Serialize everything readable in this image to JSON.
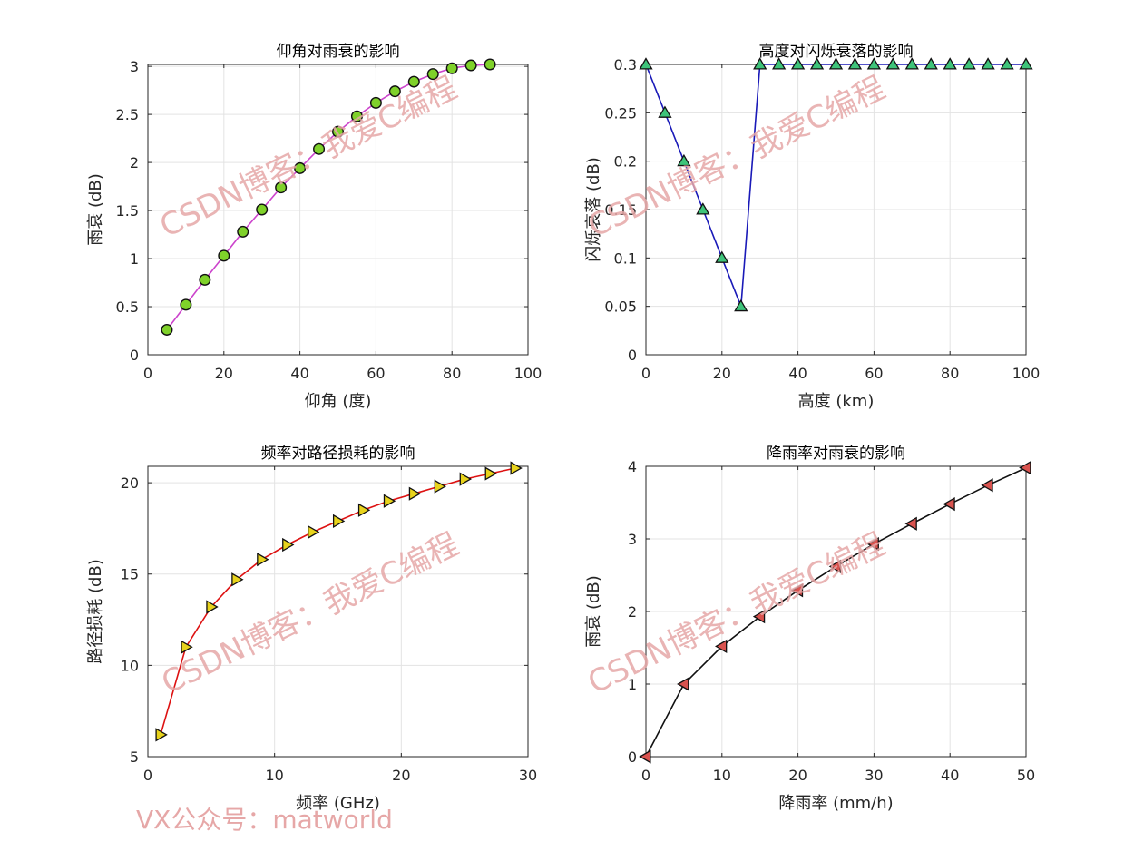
{
  "watermark": {
    "text": "CSDN博客：我爱C编程",
    "footer": "VX公众号：matworld"
  },
  "colors": {
    "grid": "#e3e3e3",
    "axis": "#262626"
  },
  "chart_data": [
    {
      "type": "line",
      "title": "仰角对雨衰的影响",
      "xlabel": "仰角 (度)",
      "ylabel": "雨衰 (dB)",
      "xlim": [
        0,
        100
      ],
      "ylim": [
        0,
        3.02
      ],
      "xticks": [
        0,
        20,
        40,
        60,
        80,
        100
      ],
      "yticks": [
        0,
        0.5,
        1,
        1.5,
        2,
        2.5,
        3
      ],
      "ytick_labels": [
        "0",
        "0.5",
        "1",
        "1.5",
        "2",
        "2.5",
        "3"
      ],
      "grid": true,
      "line_color": "#cc44cc",
      "marker": "circle",
      "marker_color": "#7fd12a",
      "x": [
        5,
        10,
        15,
        20,
        25,
        30,
        35,
        40,
        45,
        50,
        55,
        60,
        65,
        70,
        75,
        80,
        85,
        90
      ],
      "y": [
        0.26,
        0.52,
        0.78,
        1.03,
        1.28,
        1.51,
        1.74,
        1.94,
        2.14,
        2.32,
        2.48,
        2.62,
        2.74,
        2.84,
        2.92,
        2.98,
        3.01,
        3.02
      ]
    },
    {
      "type": "line",
      "title": "高度对闪烁衰落的影响",
      "xlabel": "高度 (km)",
      "ylabel": "闪烁衰落 (dB)",
      "xlim": [
        0,
        100
      ],
      "ylim": [
        0,
        0.3
      ],
      "xticks": [
        0,
        20,
        40,
        60,
        80,
        100
      ],
      "yticks": [
        0,
        0.05,
        0.1,
        0.15,
        0.2,
        0.25,
        0.3
      ],
      "ytick_labels": [
        "0",
        "0.05",
        "0.1",
        "0.15",
        "0.2",
        "0.25",
        "0.3"
      ],
      "grid": true,
      "line_color": "#1a1ab8",
      "marker": "triangle-up",
      "marker_color": "#3ec47a",
      "x": [
        0,
        5,
        10,
        15,
        20,
        25,
        30,
        35,
        40,
        45,
        50,
        55,
        60,
        65,
        70,
        75,
        80,
        85,
        90,
        95,
        100
      ],
      "y": [
        0.3,
        0.25,
        0.2,
        0.15,
        0.1,
        0.05,
        0.3,
        0.3,
        0.3,
        0.3,
        0.3,
        0.3,
        0.3,
        0.3,
        0.3,
        0.3,
        0.3,
        0.3,
        0.3,
        0.3,
        0.3
      ]
    },
    {
      "type": "line",
      "title": "频率对路径损耗的影响",
      "xlabel": "频率 (GHz)",
      "ylabel": "路径损耗 (dB)",
      "xlim": [
        0,
        30
      ],
      "ylim": [
        5,
        20.9
      ],
      "xticks": [
        0,
        10,
        20,
        30
      ],
      "yticks": [
        5,
        10,
        15,
        20
      ],
      "ytick_labels": [
        "5",
        "10",
        "15",
        "20"
      ],
      "grid": true,
      "line_color": "#dd1111",
      "marker": "triangle-right",
      "marker_color": "#e8d31c",
      "x": [
        1,
        3,
        5,
        7,
        9,
        11,
        13,
        15,
        17,
        19,
        21,
        23,
        25,
        27,
        29
      ],
      "y": [
        6.2,
        11.0,
        13.2,
        14.7,
        15.8,
        16.6,
        17.3,
        17.9,
        18.5,
        19.0,
        19.4,
        19.8,
        20.2,
        20.5,
        20.8
      ]
    },
    {
      "type": "line",
      "title": "降雨率对雨衰的影响",
      "xlabel": "降雨率 (mm/h)",
      "ylabel": "雨衰 (dB)",
      "xlim": [
        0,
        50
      ],
      "ylim": [
        0,
        4
      ],
      "xticks": [
        0,
        10,
        20,
        30,
        40,
        50
      ],
      "yticks": [
        0,
        1,
        2,
        3,
        4
      ],
      "ytick_labels": [
        "0",
        "1",
        "2",
        "3",
        "4"
      ],
      "grid": true,
      "line_color": "#111111",
      "marker": "triangle-left",
      "marker_color": "#d9534f",
      "x": [
        0,
        5,
        10,
        15,
        20,
        25,
        30,
        35,
        40,
        45,
        50
      ],
      "y": [
        0,
        1.0,
        1.52,
        1.93,
        2.29,
        2.62,
        2.93,
        3.21,
        3.48,
        3.74,
        3.98
      ]
    }
  ]
}
